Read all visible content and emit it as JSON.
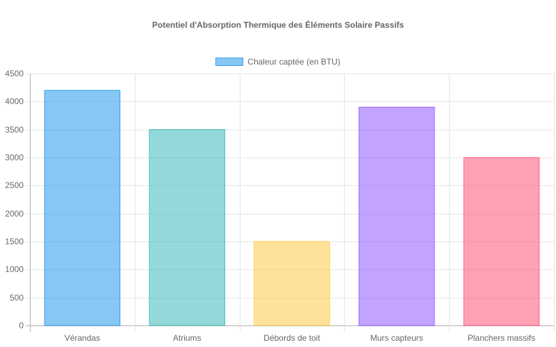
{
  "chart_data": {
    "type": "bar",
    "title": "Potentiel d'Absorption Thermique des Éléments Solaire Passifs",
    "xlabel": "",
    "ylabel": "",
    "categories": [
      "Vérandas",
      "Atriums",
      "Débords de toit",
      "Murs capteurs",
      "Planchers massifs"
    ],
    "series": [
      {
        "name": "Chaleur captée (en BTU)",
        "values": [
          4200,
          3500,
          1500,
          3900,
          3000
        ]
      }
    ],
    "ylim": [
      0,
      4500
    ],
    "yticks": [
      0,
      500,
      1000,
      1500,
      2000,
      2500,
      3000,
      3500,
      4000,
      4500
    ],
    "grid": true,
    "legend_position": "top",
    "colors": {
      "fill": [
        "rgba(54,162,235,0.6)",
        "rgba(75,192,192,0.6)",
        "rgba(255,206,86,0.6)",
        "rgba(153,102,255,0.6)",
        "rgba(255,99,132,0.6)"
      ],
      "border": [
        "#36a2eb",
        "#4bc0c0",
        "#ffce56",
        "#9966ff",
        "#ff6384"
      ]
    }
  },
  "legend": {
    "label": "Chaleur captée (en BTU)",
    "swatch_color": "#36a2eb"
  }
}
